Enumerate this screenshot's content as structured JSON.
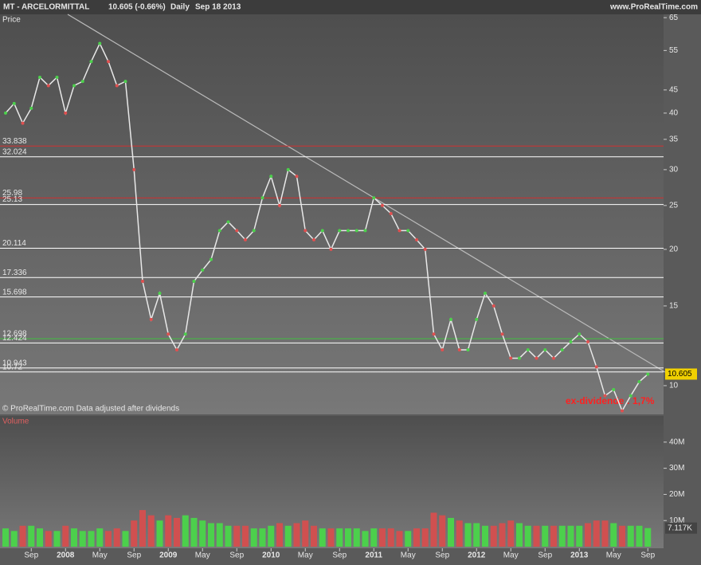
{
  "header": {
    "symbol": "MT - ARCELORMITTAL",
    "quote": "10.605 (-0.66%)",
    "period": "Daily",
    "date": "Sep 18 2013",
    "site": "www.ProRealTime.com"
  },
  "chart_data": [
    {
      "type": "line",
      "title": "Price",
      "log_scale": true,
      "color": "#e8e8e8",
      "categories": [
        null,
        null,
        null,
        "Sep",
        null,
        null,
        null,
        "2008",
        null,
        null,
        null,
        "May",
        null,
        null,
        null,
        "Sep",
        null,
        null,
        null,
        "2009",
        null,
        null,
        null,
        "May",
        null,
        null,
        null,
        "Sep",
        null,
        null,
        null,
        "2010",
        null,
        null,
        null,
        "May",
        null,
        null,
        null,
        "Sep",
        null,
        null,
        null,
        "2011",
        null,
        null,
        null,
        "May",
        null,
        null,
        null,
        "Sep",
        null,
        null,
        null,
        "2012",
        null,
        null,
        null,
        "May",
        null,
        null,
        null,
        "Sep",
        null,
        null,
        null,
        "2013",
        null,
        null,
        null,
        "May",
        null,
        null,
        null,
        "Sep"
      ],
      "series": [
        {
          "name": "MT",
          "color": "#e8e8e8",
          "values": [
            40,
            42,
            38,
            41,
            48,
            46,
            48,
            40,
            46,
            47,
            52,
            57,
            52,
            46,
            47,
            30,
            17,
            14,
            16,
            13,
            12,
            13,
            17,
            18,
            19,
            22,
            23,
            22,
            21,
            22,
            26,
            29,
            25,
            30,
            29,
            22,
            21,
            22,
            20,
            22,
            22,
            22,
            22,
            26,
            25,
            24,
            22,
            22,
            21,
            20,
            13,
            12,
            14,
            12,
            12,
            14,
            16,
            15,
            13,
            11.5,
            11.5,
            12,
            11.5,
            12,
            11.5,
            12,
            12.5,
            13,
            12.5,
            11,
            9.5,
            9.8,
            8.8,
            9.5,
            10.2,
            10.6
          ]
        }
      ],
      "last_price": 10.605,
      "levels": [
        {
          "value": 33.838,
          "color": "#d03030"
        },
        {
          "value": 32.024,
          "color": "#ffffff"
        },
        {
          "value": 25.98,
          "color": "#d03030"
        },
        {
          "value": 25.13,
          "color": "#ffffff"
        },
        {
          "value": 20.114,
          "color": "#ffffff"
        },
        {
          "value": 17.336,
          "color": "#ffffff"
        },
        {
          "value": 15.698,
          "color": "#ffffff"
        },
        {
          "value": 12.698,
          "color": "#40c040"
        },
        {
          "value": 12.424,
          "color": "#ffffff"
        },
        {
          "value": 10.943,
          "color": "#ffffff"
        },
        {
          "value": 10.72,
          "color": "#ffffff"
        }
      ],
      "annotations": [
        "ex-dividende : 1,7%",
        "© ProRealTime.com  Data adjusted after dividends"
      ],
      "ylim": [
        8.64,
        66.1
      ],
      "yticks": [
        10,
        15,
        20,
        25,
        30,
        35,
        40,
        45,
        55,
        65
      ]
    },
    {
      "type": "bar",
      "title": "Volume",
      "up_color": "#4cd04c",
      "down_color": "#d05050",
      "series": [
        {
          "name": "Volume",
          "values": [
            7,
            6,
            8,
            8,
            7,
            6,
            6,
            8,
            7,
            6,
            6,
            7,
            6,
            7,
            6,
            10,
            14,
            12,
            10,
            12,
            11,
            12,
            11,
            10,
            9,
            9,
            8,
            8,
            8,
            7,
            7,
            8,
            9,
            8,
            9,
            10,
            8,
            7,
            7,
            7,
            7,
            7,
            6,
            7,
            7,
            7,
            6,
            6,
            7,
            7,
            13,
            12,
            11,
            10,
            9,
            9,
            8,
            8,
            9,
            10,
            9,
            8,
            8,
            8,
            8,
            8,
            8,
            8,
            9,
            10,
            10,
            9,
            8,
            8,
            8,
            7.117
          ]
        }
      ],
      "last_label": "7.117K",
      "ylim": [
        0,
        50
      ],
      "yticks": [
        {
          "value": 10,
          "label": "10M"
        },
        {
          "value": 20,
          "label": "20M"
        },
        {
          "value": 30,
          "label": "30M"
        },
        {
          "value": 40,
          "label": "40M"
        }
      ]
    }
  ]
}
